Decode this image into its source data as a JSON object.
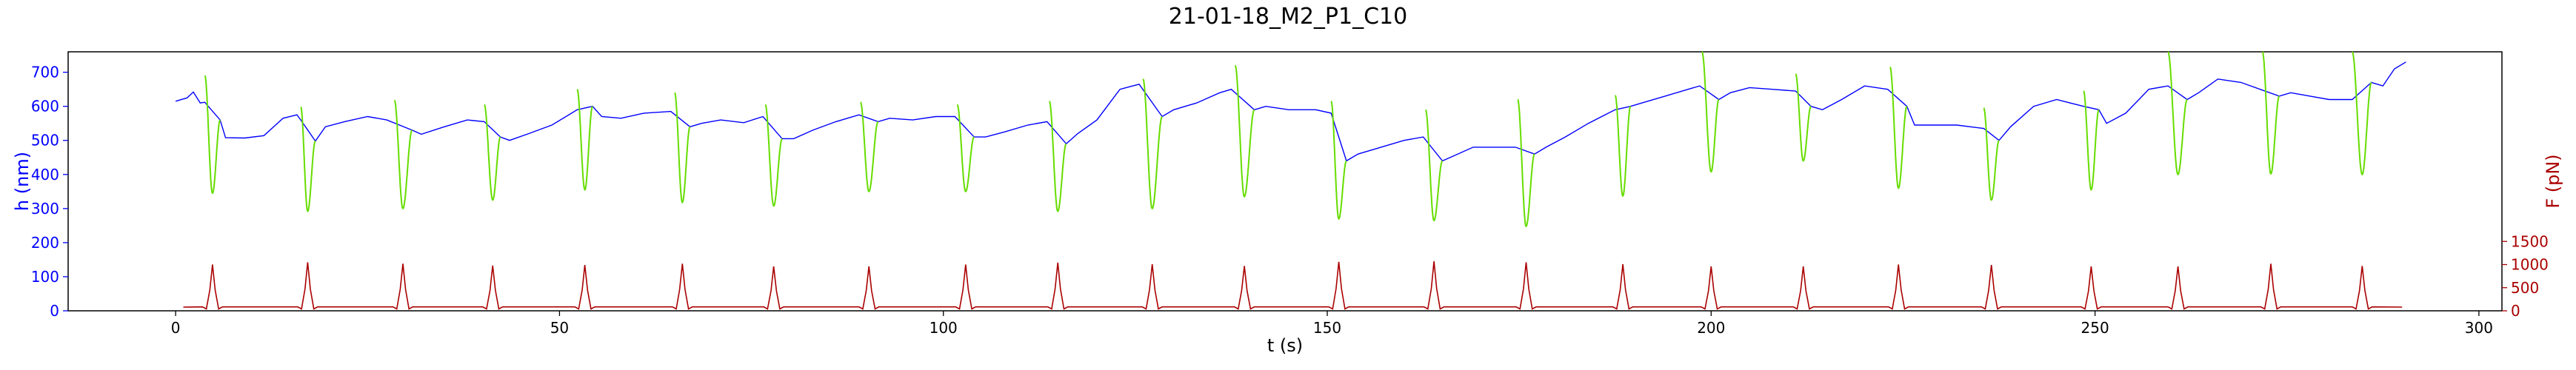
{
  "chart_data": {
    "type": "line",
    "title": "21-01-18_M2_P1_C10",
    "xlabel": "t (s)",
    "ylabel_left": "h (nm)",
    "ylabel_right": "F (pN)",
    "xlim": [
      -14,
      303
    ],
    "ylim_left": [
      0,
      760
    ],
    "ylim_right": [
      0,
      5600
    ],
    "xticks": [
      0,
      50,
      100,
      150,
      200,
      250,
      300
    ],
    "yticks_left": [
      0,
      100,
      200,
      300,
      400,
      500,
      600,
      700
    ],
    "yticks_right": [
      0,
      500,
      1000,
      1500
    ],
    "grid": false,
    "colors": {
      "h_series": "#0000ff",
      "approach_segments": "#66dd00",
      "force_series": "#aa0000",
      "left_axis": "#0000ff",
      "right_axis": "#aa0000"
    },
    "h_baseline": [
      {
        "x": 0,
        "y": 615
      },
      {
        "x": 1.5,
        "y": 625
      },
      {
        "x": 2.3,
        "y": 642
      },
      {
        "x": 3.2,
        "y": 610
      },
      {
        "x": 3.8,
        "y": 612
      },
      {
        "x": 5.8,
        "y": 560
      },
      {
        "x": 6.5,
        "y": 508
      },
      {
        "x": 9,
        "y": 507
      },
      {
        "x": 11.5,
        "y": 514
      },
      {
        "x": 14,
        "y": 565
      },
      {
        "x": 15.8,
        "y": 575
      },
      {
        "x": 16.3,
        "y": 560
      },
      {
        "x": 18.2,
        "y": 498
      },
      {
        "x": 19.5,
        "y": 540
      },
      {
        "x": 22,
        "y": 555
      },
      {
        "x": 25,
        "y": 570
      },
      {
        "x": 27.5,
        "y": 560
      },
      {
        "x": 30.8,
        "y": 530
      },
      {
        "x": 32,
        "y": 518
      },
      {
        "x": 35,
        "y": 540
      },
      {
        "x": 38,
        "y": 560
      },
      {
        "x": 40.2,
        "y": 555
      },
      {
        "x": 42.3,
        "y": 510
      },
      {
        "x": 43.5,
        "y": 500
      },
      {
        "x": 46,
        "y": 520
      },
      {
        "x": 49,
        "y": 545
      },
      {
        "x": 52.3,
        "y": 590
      },
      {
        "x": 54.3,
        "y": 600
      },
      {
        "x": 55.5,
        "y": 570
      },
      {
        "x": 58,
        "y": 565
      },
      {
        "x": 61,
        "y": 580
      },
      {
        "x": 64.5,
        "y": 585
      },
      {
        "x": 67,
        "y": 540
      },
      {
        "x": 68.5,
        "y": 550
      },
      {
        "x": 71,
        "y": 560
      },
      {
        "x": 74,
        "y": 552
      },
      {
        "x": 76.5,
        "y": 570
      },
      {
        "x": 79,
        "y": 505
      },
      {
        "x": 80.5,
        "y": 505
      },
      {
        "x": 83,
        "y": 530
      },
      {
        "x": 86,
        "y": 555
      },
      {
        "x": 89,
        "y": 575
      },
      {
        "x": 91.5,
        "y": 555
      },
      {
        "x": 93,
        "y": 565
      },
      {
        "x": 96,
        "y": 560
      },
      {
        "x": 99,
        "y": 570
      },
      {
        "x": 101.5,
        "y": 570
      },
      {
        "x": 104,
        "y": 510
      },
      {
        "x": 105.5,
        "y": 510
      },
      {
        "x": 108,
        "y": 525
      },
      {
        "x": 111,
        "y": 545
      },
      {
        "x": 113.5,
        "y": 555
      },
      {
        "x": 116,
        "y": 490
      },
      {
        "x": 117.5,
        "y": 520
      },
      {
        "x": 120,
        "y": 560
      },
      {
        "x": 123,
        "y": 650
      },
      {
        "x": 125.5,
        "y": 665
      },
      {
        "x": 128.5,
        "y": 570
      },
      {
        "x": 130,
        "y": 590
      },
      {
        "x": 133,
        "y": 610
      },
      {
        "x": 136,
        "y": 640
      },
      {
        "x": 137.5,
        "y": 650
      },
      {
        "x": 140.5,
        "y": 590
      },
      {
        "x": 142,
        "y": 600
      },
      {
        "x": 145,
        "y": 590
      },
      {
        "x": 148.5,
        "y": 590
      },
      {
        "x": 150.5,
        "y": 580
      },
      {
        "x": 152.5,
        "y": 440
      },
      {
        "x": 154,
        "y": 460
      },
      {
        "x": 157,
        "y": 480
      },
      {
        "x": 160,
        "y": 500
      },
      {
        "x": 162.5,
        "y": 510
      },
      {
        "x": 165,
        "y": 440
      },
      {
        "x": 166.5,
        "y": 455
      },
      {
        "x": 169,
        "y": 480
      },
      {
        "x": 172,
        "y": 480
      },
      {
        "x": 174.5,
        "y": 480
      },
      {
        "x": 177,
        "y": 460
      },
      {
        "x": 178.5,
        "y": 480
      },
      {
        "x": 181,
        "y": 510
      },
      {
        "x": 184,
        "y": 550
      },
      {
        "x": 187.5,
        "y": 590
      },
      {
        "x": 189.5,
        "y": 600
      },
      {
        "x": 191,
        "y": 610
      },
      {
        "x": 194,
        "y": 630
      },
      {
        "x": 197,
        "y": 650
      },
      {
        "x": 198.5,
        "y": 660
      },
      {
        "x": 201,
        "y": 620
      },
      {
        "x": 202.5,
        "y": 640
      },
      {
        "x": 205,
        "y": 655
      },
      {
        "x": 208,
        "y": 650
      },
      {
        "x": 211,
        "y": 645
      },
      {
        "x": 213,
        "y": 600
      },
      {
        "x": 214.5,
        "y": 590
      },
      {
        "x": 217,
        "y": 620
      },
      {
        "x": 220,
        "y": 660
      },
      {
        "x": 223,
        "y": 650
      },
      {
        "x": 225.5,
        "y": 600
      },
      {
        "x": 226.5,
        "y": 545
      },
      {
        "x": 229,
        "y": 545
      },
      {
        "x": 232,
        "y": 545
      },
      {
        "x": 235.5,
        "y": 535
      },
      {
        "x": 237.5,
        "y": 500
      },
      {
        "x": 239,
        "y": 540
      },
      {
        "x": 242,
        "y": 600
      },
      {
        "x": 245,
        "y": 620
      },
      {
        "x": 248.5,
        "y": 600
      },
      {
        "x": 250.5,
        "y": 590
      },
      {
        "x": 251.5,
        "y": 550
      },
      {
        "x": 254,
        "y": 580
      },
      {
        "x": 257,
        "y": 650
      },
      {
        "x": 259.5,
        "y": 660
      },
      {
        "x": 262,
        "y": 620
      },
      {
        "x": 263.5,
        "y": 640
      },
      {
        "x": 266,
        "y": 680
      },
      {
        "x": 269,
        "y": 670
      },
      {
        "x": 271.5,
        "y": 650
      },
      {
        "x": 274,
        "y": 630
      },
      {
        "x": 275.5,
        "y": 640
      },
      {
        "x": 278,
        "y": 630
      },
      {
        "x": 280.5,
        "y": 620
      },
      {
        "x": 283.5,
        "y": 620
      },
      {
        "x": 286,
        "y": 670
      },
      {
        "x": 287.5,
        "y": 660
      },
      {
        "x": 289,
        "y": 710
      },
      {
        "x": 290.5,
        "y": 730
      }
    ],
    "approach_dips": [
      {
        "t_start": 3.8,
        "top": 690,
        "min_t": 4.8,
        "min": 345,
        "t_end": 5.8,
        "end": 560
      },
      {
        "t_start": 16.3,
        "top": 598,
        "min_t": 17.2,
        "min": 292,
        "t_end": 18.2,
        "end": 498
      },
      {
        "t_start": 28.5,
        "top": 618,
        "min_t": 29.6,
        "min": 300,
        "t_end": 30.8,
        "end": 530
      },
      {
        "t_start": 40.2,
        "top": 605,
        "min_t": 41.3,
        "min": 325,
        "t_end": 42.3,
        "end": 510
      },
      {
        "t_start": 52.3,
        "top": 650,
        "min_t": 53.3,
        "min": 355,
        "t_end": 54.3,
        "end": 600
      },
      {
        "t_start": 65,
        "top": 640,
        "min_t": 66,
        "min": 318,
        "t_end": 67,
        "end": 540
      },
      {
        "t_start": 76.8,
        "top": 605,
        "min_t": 77.9,
        "min": 308,
        "t_end": 79,
        "end": 505
      },
      {
        "t_start": 89.2,
        "top": 612,
        "min_t": 90.3,
        "min": 350,
        "t_end": 91.5,
        "end": 555
      },
      {
        "t_start": 101.8,
        "top": 605,
        "min_t": 102.9,
        "min": 350,
        "t_end": 104,
        "end": 510
      },
      {
        "t_start": 113.8,
        "top": 615,
        "min_t": 114.9,
        "min": 292,
        "t_end": 116,
        "end": 490
      },
      {
        "t_start": 126,
        "top": 680,
        "min_t": 127.2,
        "min": 300,
        "t_end": 128.5,
        "end": 570
      },
      {
        "t_start": 138,
        "top": 720,
        "min_t": 139.2,
        "min": 335,
        "t_end": 140.5,
        "end": 590
      },
      {
        "t_start": 150.5,
        "top": 615,
        "min_t": 151.5,
        "min": 270,
        "t_end": 152.5,
        "end": 440
      },
      {
        "t_start": 162.8,
        "top": 590,
        "min_t": 163.9,
        "min": 265,
        "t_end": 165,
        "end": 440
      },
      {
        "t_start": 174.8,
        "top": 620,
        "min_t": 175.9,
        "min": 248,
        "t_end": 177,
        "end": 460
      },
      {
        "t_start": 187.5,
        "top": 632,
        "min_t": 188.5,
        "min": 337,
        "t_end": 189.5,
        "end": 600
      },
      {
        "t_start": 198.8,
        "top": 760,
        "min_t": 200,
        "min": 408,
        "t_end": 201,
        "end": 620
      },
      {
        "t_start": 211,
        "top": 695,
        "min_t": 212,
        "min": 440,
        "t_end": 213,
        "end": 600
      },
      {
        "t_start": 223.3,
        "top": 715,
        "min_t": 224.4,
        "min": 360,
        "t_end": 225.5,
        "end": 600
      },
      {
        "t_start": 235.5,
        "top": 595,
        "min_t": 236.5,
        "min": 325,
        "t_end": 237.5,
        "end": 500
      },
      {
        "t_start": 248.5,
        "top": 645,
        "min_t": 249.5,
        "min": 355,
        "t_end": 250.5,
        "end": 590
      },
      {
        "t_start": 259.5,
        "top": 760,
        "min_t": 260.8,
        "min": 400,
        "t_end": 262,
        "end": 620
      },
      {
        "t_start": 271.8,
        "top": 760,
        "min_t": 272.9,
        "min": 402,
        "t_end": 274,
        "end": 630
      },
      {
        "t_start": 283.5,
        "top": 760,
        "min_t": 284.8,
        "min": 400,
        "t_end": 286,
        "end": 670
      }
    ],
    "force_baseline": 80,
    "force_series_start": 1,
    "force_series_end": 290,
    "force_peaks": [
      {
        "x": 4.8,
        "y": 1000
      },
      {
        "x": 17.2,
        "y": 1050
      },
      {
        "x": 29.6,
        "y": 1020
      },
      {
        "x": 41.3,
        "y": 980
      },
      {
        "x": 53.3,
        "y": 990
      },
      {
        "x": 66,
        "y": 1020
      },
      {
        "x": 77.9,
        "y": 960
      },
      {
        "x": 90.3,
        "y": 960
      },
      {
        "x": 102.9,
        "y": 1000
      },
      {
        "x": 114.9,
        "y": 1040
      },
      {
        "x": 127.2,
        "y": 1010
      },
      {
        "x": 139.2,
        "y": 970
      },
      {
        "x": 151.5,
        "y": 1060
      },
      {
        "x": 163.9,
        "y": 1070
      },
      {
        "x": 175.9,
        "y": 1050
      },
      {
        "x": 188.5,
        "y": 1010
      },
      {
        "x": 200,
        "y": 960
      },
      {
        "x": 212,
        "y": 960
      },
      {
        "x": 224.4,
        "y": 1000
      },
      {
        "x": 236.5,
        "y": 990
      },
      {
        "x": 249.5,
        "y": 960
      },
      {
        "x": 260.8,
        "y": 960
      },
      {
        "x": 272.9,
        "y": 1020
      },
      {
        "x": 284.8,
        "y": 970
      }
    ]
  }
}
